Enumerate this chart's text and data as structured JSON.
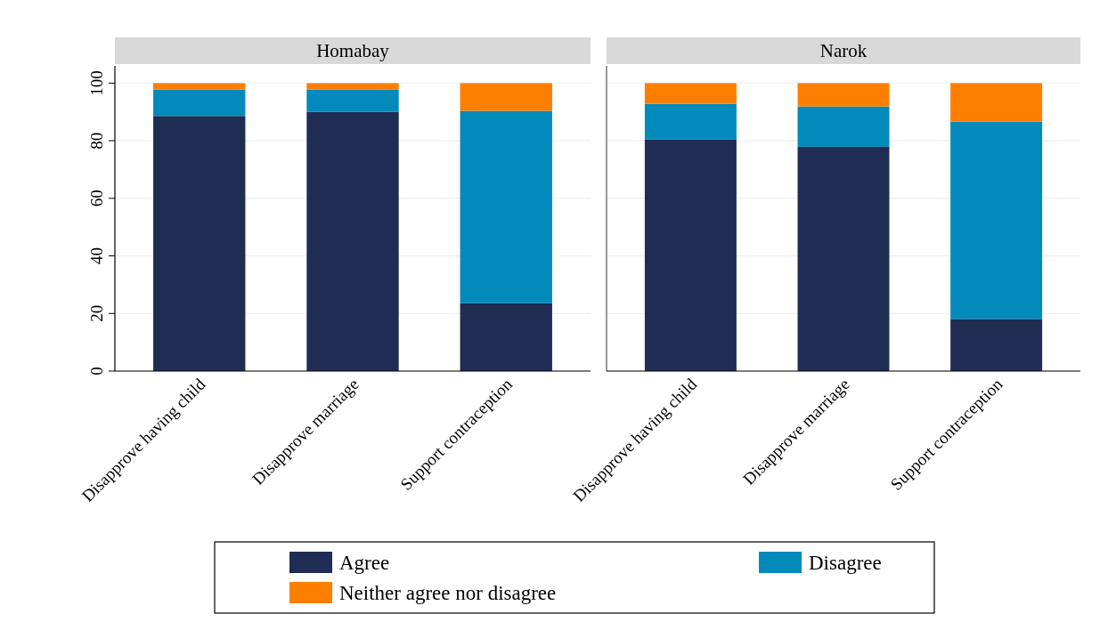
{
  "chart_data": [
    {
      "type": "bar",
      "title": "Homabay",
      "categories": [
        "Disapprove having child",
        "Disapprove marriage",
        "Support contraception"
      ],
      "stacked": true,
      "ylim": [
        0,
        106
      ],
      "yticks": [
        0,
        20,
        40,
        60,
        80,
        100
      ],
      "grid": "y",
      "legend": "bottom",
      "series": [
        {
          "name": "Agree",
          "color": "#1f2d54",
          "values": [
            88.6,
            90.0,
            23.6
          ]
        },
        {
          "name": "Disagree",
          "color": "#028abb",
          "values": [
            9.2,
            7.8,
            66.8
          ]
        },
        {
          "name": "Neither agree nor disagree",
          "color": "#fe7f00",
          "values": [
            2.2,
            2.2,
            9.6
          ]
        }
      ]
    },
    {
      "type": "bar",
      "title": "Narok",
      "categories": [
        "Disapprove having child",
        "Disapprove marriage",
        "Support contraception"
      ],
      "stacked": true,
      "ylim": [
        0,
        106
      ],
      "yticks": [
        0,
        20,
        40,
        60,
        80,
        100
      ],
      "grid": "y",
      "tick_labels": "x",
      "series": [
        {
          "color": "#1f2d54",
          "values": [
            80.5,
            77.9,
            18.1
          ]
        },
        {
          "color": "#028abb",
          "values": [
            12.3,
            14.0,
            68.5
          ]
        },
        {
          "color": "#fe7f00",
          "values": [
            7.2,
            8.1,
            13.4
          ]
        }
      ]
    }
  ]
}
